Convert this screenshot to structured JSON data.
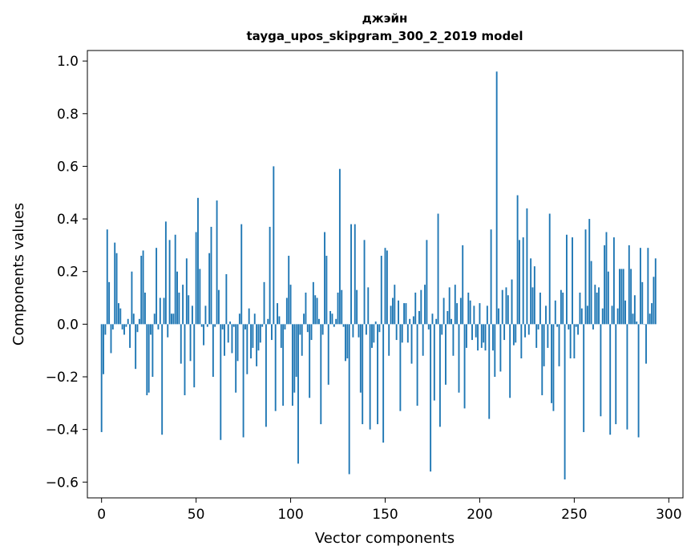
{
  "chart_data": {
    "type": "bar",
    "title": "джэйн",
    "subtitle": "tayga_upos_skipgram_300_2_2019 model",
    "xlabel": "Vector components",
    "ylabel": "Components values",
    "xlim": [
      -7.5,
      307.5
    ],
    "ylim": [
      -0.66,
      1.04
    ],
    "x_ticks": [
      0,
      50,
      100,
      150,
      200,
      250,
      300
    ],
    "x_tick_labels": [
      "0",
      "50",
      "100",
      "150",
      "200",
      "250",
      "300"
    ],
    "y_ticks": [
      -0.6,
      -0.4,
      -0.2,
      0.0,
      0.2,
      0.4,
      0.6,
      0.8,
      1.0
    ],
    "y_tick_labels": [
      "−0.6",
      "−0.4",
      "−0.2",
      "0.0",
      "0.2",
      "0.4",
      "0.6",
      "0.8",
      "1.0"
    ],
    "bar_color": "#1f77b4",
    "values": [
      -0.41,
      -0.19,
      -0.04,
      0.36,
      0.16,
      -0.11,
      -0.02,
      0.31,
      0.27,
      0.08,
      0.06,
      -0.02,
      -0.04,
      -0.01,
      0.02,
      -0.09,
      0.2,
      0.04,
      -0.17,
      -0.03,
      0.02,
      0.26,
      0.28,
      0.12,
      -0.27,
      -0.26,
      -0.04,
      -0.2,
      0.04,
      0.29,
      -0.02,
      0.1,
      -0.42,
      0.1,
      0.39,
      -0.05,
      0.32,
      0.04,
      0.04,
      0.34,
      0.2,
      0.12,
      -0.15,
      0.15,
      -0.27,
      0.25,
      0.11,
      -0.14,
      0.07,
      -0.24,
      0.35,
      0.48,
      0.21,
      -0.01,
      -0.08,
      0.07,
      -0.01,
      0.27,
      0.37,
      -0.2,
      -0.01,
      0.47,
      0.13,
      -0.44,
      -0.02,
      -0.12,
      0.19,
      -0.07,
      0.01,
      -0.11,
      -0.01,
      -0.26,
      -0.14,
      0.04,
      0.38,
      -0.43,
      -0.02,
      -0.19,
      0.06,
      -0.13,
      -0.09,
      0.04,
      -0.16,
      -0.1,
      -0.07,
      -0.01,
      0.16,
      -0.39,
      0.02,
      0.37,
      -0.06,
      0.6,
      -0.33,
      0.08,
      0.03,
      -0.09,
      -0.31,
      -0.02,
      0.1,
      0.26,
      0.15,
      -0.31,
      -0.26,
      -0.2,
      -0.53,
      -0.04,
      -0.12,
      0.04,
      0.12,
      -0.03,
      -0.28,
      -0.06,
      0.16,
      0.11,
      0.1,
      0.02,
      -0.38,
      -0.04,
      0.35,
      0.26,
      -0.23,
      0.05,
      0.04,
      -0.01,
      0.02,
      0.12,
      0.59,
      0.13,
      -0.01,
      -0.14,
      -0.13,
      -0.57,
      0.38,
      -0.05,
      0.38,
      0.13,
      -0.05,
      -0.26,
      -0.38,
      0.32,
      -0.04,
      0.14,
      -0.4,
      -0.09,
      -0.07,
      0.01,
      -0.38,
      -0.03,
      0.26,
      -0.45,
      0.29,
      0.28,
      -0.12,
      0.07,
      0.1,
      0.15,
      -0.06,
      0.09,
      -0.33,
      -0.07,
      0.08,
      0.08,
      -0.07,
      0.02,
      -0.15,
      0.03,
      0.12,
      -0.31,
      0.05,
      0.13,
      -0.12,
      0.15,
      0.32,
      -0.02,
      -0.56,
      0.04,
      -0.29,
      0.02,
      0.42,
      -0.39,
      -0.04,
      0.1,
      -0.23,
      0.05,
      0.14,
      0.02,
      -0.12,
      0.15,
      0.08,
      -0.26,
      0.1,
      0.3,
      -0.32,
      -0.09,
      0.12,
      0.09,
      -0.06,
      0.07,
      -0.05,
      -0.1,
      0.08,
      -0.09,
      -0.07,
      -0.1,
      0.07,
      -0.36,
      0.36,
      -0.1,
      -0.2,
      0.96,
      0.06,
      -0.18,
      0.13,
      -0.06,
      0.14,
      0.11,
      -0.28,
      0.17,
      -0.08,
      -0.07,
      0.49,
      0.32,
      -0.13,
      0.33,
      -0.05,
      0.44,
      -0.04,
      0.25,
      0.14,
      0.22,
      -0.09,
      -0.02,
      0.12,
      -0.27,
      -0.16,
      0.07,
      -0.09,
      0.42,
      -0.3,
      -0.33,
      0.09,
      -0.01,
      -0.16,
      0.13,
      0.12,
      -0.59,
      0.34,
      -0.02,
      -0.13,
      0.33,
      -0.13,
      -0.01,
      -0.04,
      0.12,
      0.06,
      -0.41,
      0.36,
      0.07,
      0.4,
      0.24,
      -0.02,
      0.15,
      0.12,
      0.14,
      -0.35,
      0.06,
      0.3,
      0.35,
      0.2,
      -0.42,
      0.07,
      0.33,
      -0.38,
      0.06,
      0.21,
      0.21,
      0.21,
      0.09,
      -0.4,
      0.3,
      0.21,
      0.04,
      0.11,
      0.01,
      -0.43,
      0.29,
      0.16,
      0.0,
      -0.15,
      0.29,
      0.04,
      0.08,
      0.18,
      0.25
    ]
  }
}
